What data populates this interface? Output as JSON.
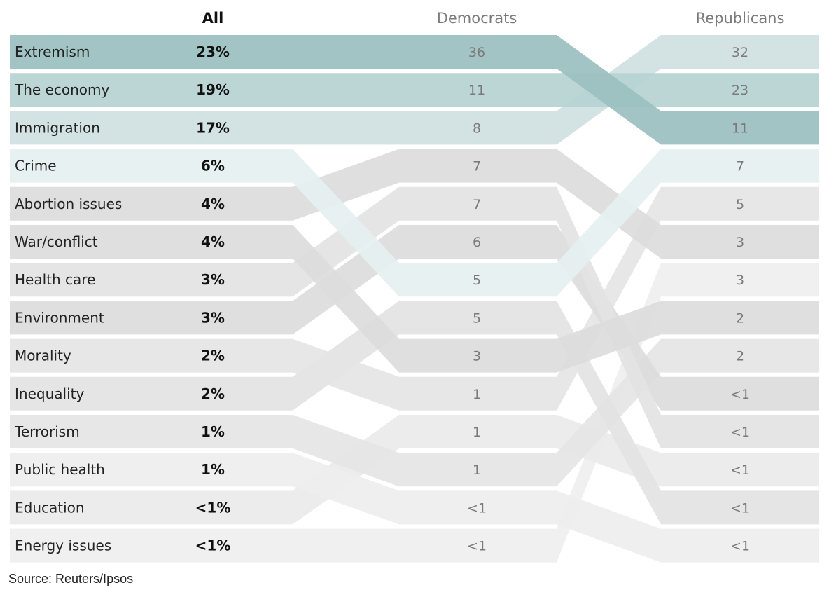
{
  "chart_data": {
    "type": "table",
    "columns": [
      "All",
      "Democrats",
      "Republicans"
    ],
    "issues": [
      "Extremism",
      "The economy",
      "Immigration",
      "Crime",
      "Abortion issues",
      "War/conflict",
      "Health care",
      "Environment",
      "Morality",
      "Inequality",
      "Terrorism",
      "Public health",
      "Education",
      "Energy issues"
    ],
    "all": [
      "23%",
      "19%",
      "17%",
      "6%",
      "4%",
      "4%",
      "3%",
      "3%",
      "2%",
      "2%",
      "1%",
      "1%",
      "<1%",
      "<1%"
    ],
    "democrats": [
      {
        "issue": "Extremism",
        "value": "36"
      },
      {
        "issue": "The economy",
        "value": "11"
      },
      {
        "issue": "Immigration",
        "value": "8"
      },
      {
        "issue": "Abortion issues",
        "value": "7"
      },
      {
        "issue": "Health care",
        "value": "7"
      },
      {
        "issue": "Environment",
        "value": "6"
      },
      {
        "issue": "Crime",
        "value": "5"
      },
      {
        "issue": "Inequality",
        "value": "5"
      },
      {
        "issue": "War/conflict",
        "value": "3"
      },
      {
        "issue": "Morality",
        "value": "1"
      },
      {
        "issue": "Education",
        "value": "1"
      },
      {
        "issue": "Terrorism",
        "value": "1"
      },
      {
        "issue": "Public health",
        "value": "<1"
      },
      {
        "issue": "Energy issues",
        "value": "<1"
      }
    ],
    "republicans": [
      {
        "issue": "Immigration",
        "value": "32"
      },
      {
        "issue": "The economy",
        "value": "23"
      },
      {
        "issue": "Extremism",
        "value": "11"
      },
      {
        "issue": "Crime",
        "value": "7"
      },
      {
        "issue": "Morality",
        "value": "5"
      },
      {
        "issue": "Abortion issues",
        "value": "3"
      },
      {
        "issue": "Energy issues",
        "value": "3"
      },
      {
        "issue": "War/conflict",
        "value": "2"
      },
      {
        "issue": "Terrorism",
        "value": "2"
      },
      {
        "issue": "Environment",
        "value": "<1"
      },
      {
        "issue": "Health care",
        "value": "<1"
      },
      {
        "issue": "Education",
        "value": "<1"
      },
      {
        "issue": "Inequality",
        "value": "<1"
      },
      {
        "issue": "Public health",
        "value": "<1"
      }
    ],
    "colors": {
      "Extremism": "#9bbfbf",
      "The economy": "#b6d2d2",
      "Immigration": "#cfe1e1",
      "Crime": "#e6f0f0",
      "Abortion issues": "#dcdcdc",
      "War/conflict": "#dcdcdc",
      "Health care": "#e3e3e3",
      "Environment": "#dcdcdc",
      "Morality": "#e5e5e5",
      "Inequality": "#e3e3e3",
      "Terrorism": "#e5e5e5",
      "Public health": "#eeeeee",
      "Education": "#eaeaea",
      "Energy issues": "#efefef"
    }
  },
  "source": "Source: Reuters/Ipsos"
}
